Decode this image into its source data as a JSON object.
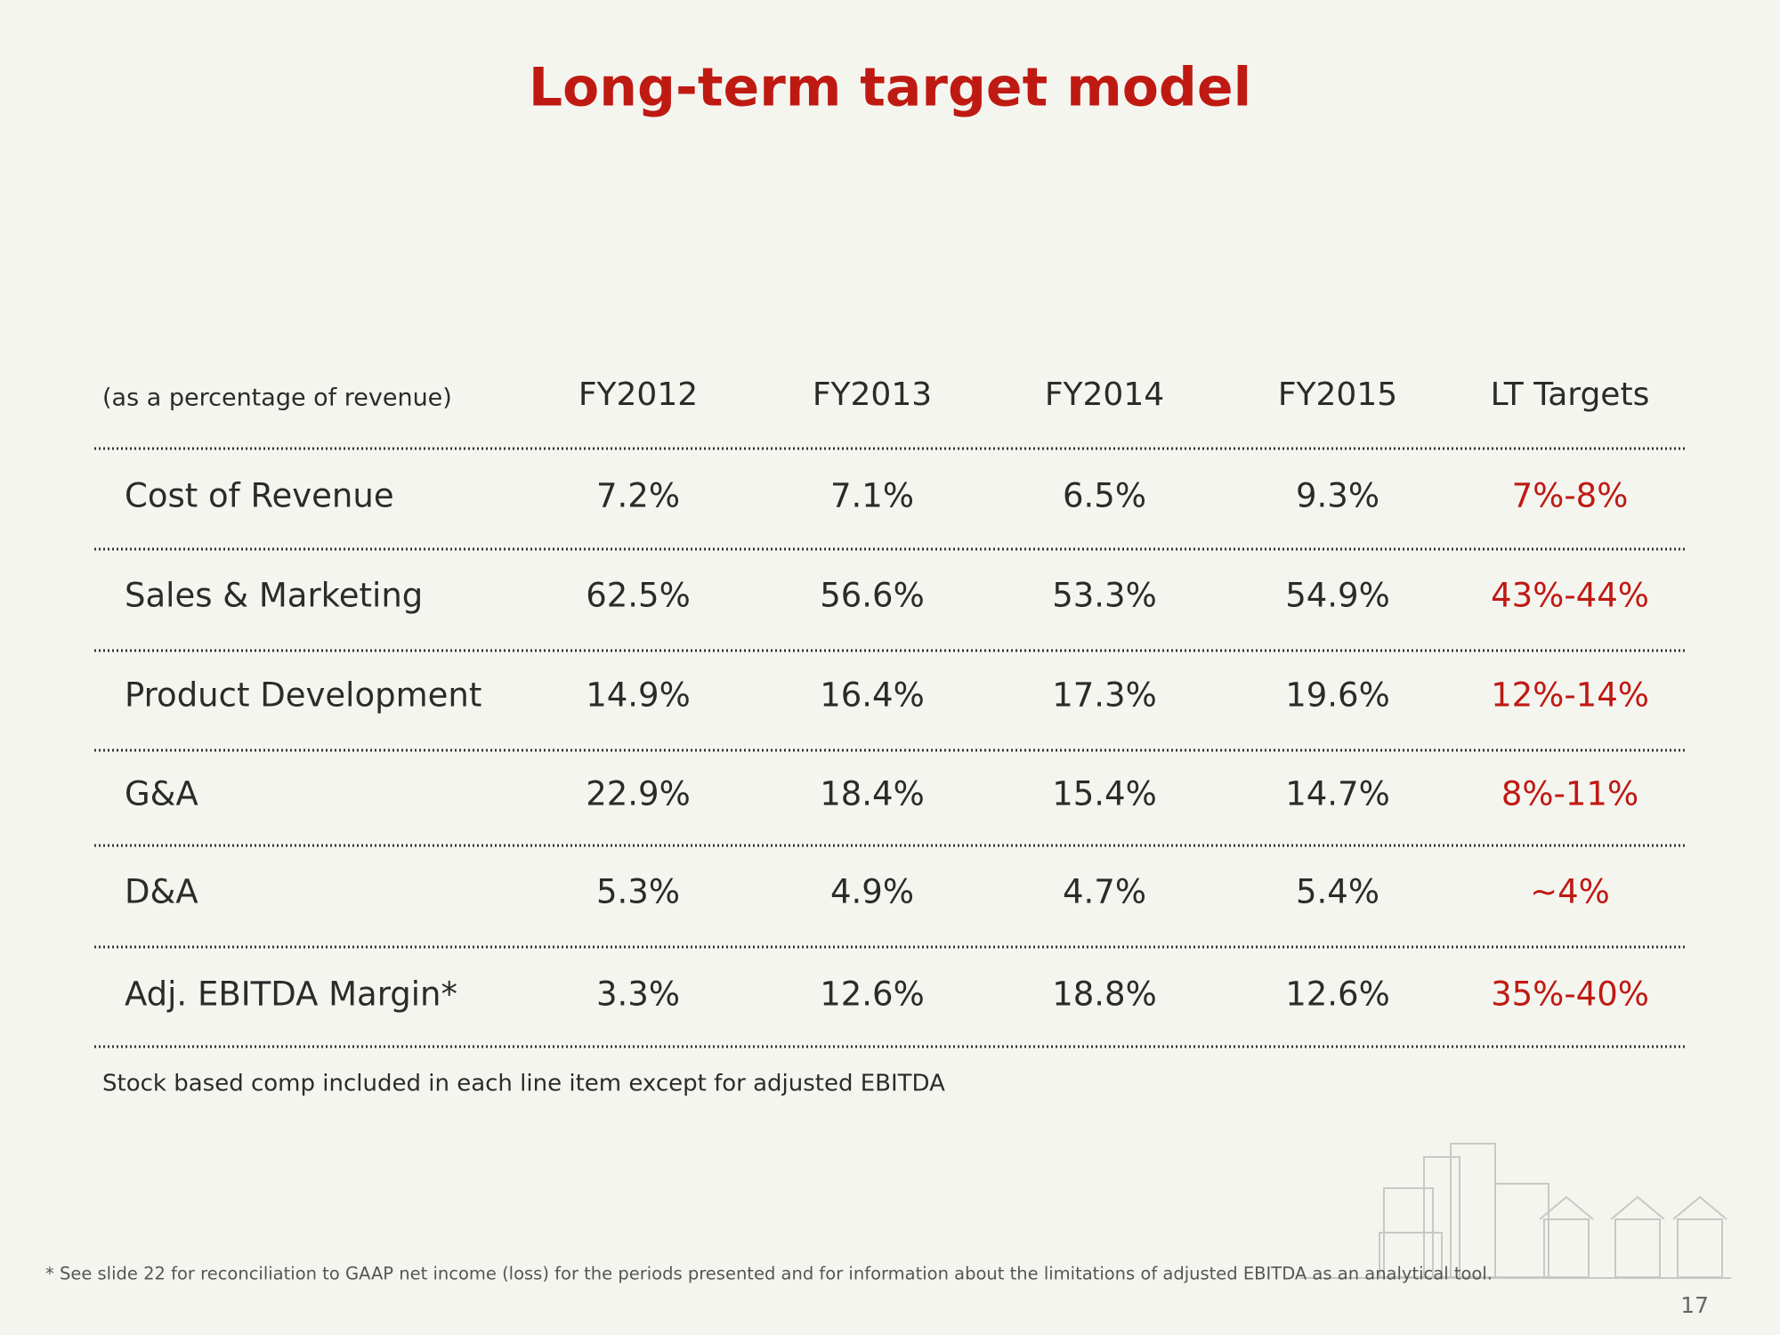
{
  "header": {
    "title": "Long-term target model"
  },
  "table": {
    "columns": [
      "(as a percentage of revenue)",
      "FY2012",
      "FY2013",
      "FY2014",
      "FY2015",
      "LT Targets"
    ],
    "rows": [
      [
        "Cost of Revenue",
        "7.2%",
        "7.1%",
        "6.5%",
        "9.3%",
        "7%-8%"
      ],
      [
        "Sales & Marketing",
        "62.5%",
        "56.6%",
        "53.3%",
        "54.9%",
        "43%-44%"
      ],
      [
        "Product Development",
        "14.9%",
        "16.4%",
        "17.3%",
        "19.6%",
        "12%-14%"
      ],
      [
        "G&A",
        "22.9%",
        "18.4%",
        "15.4%",
        "14.7%",
        "8%-11%"
      ],
      [
        "D&A",
        "5.3%",
        "4.9%",
        "4.7%",
        "5.4%",
        "~4%"
      ],
      [
        "Adj. EBITDA Margin*",
        "3.3%",
        "12.6%",
        "18.8%",
        "12.6%",
        "35%-40%"
      ]
    ]
  },
  "note": "Stock based comp included in each line item except for adjusted EBITDA",
  "footnote": "* See slide 22 for reconciliation to GAAP net income (loss) for the periods presented and for information about the limitations of adjusted EBITDA as an analytical tool.",
  "page_number": "17"
}
